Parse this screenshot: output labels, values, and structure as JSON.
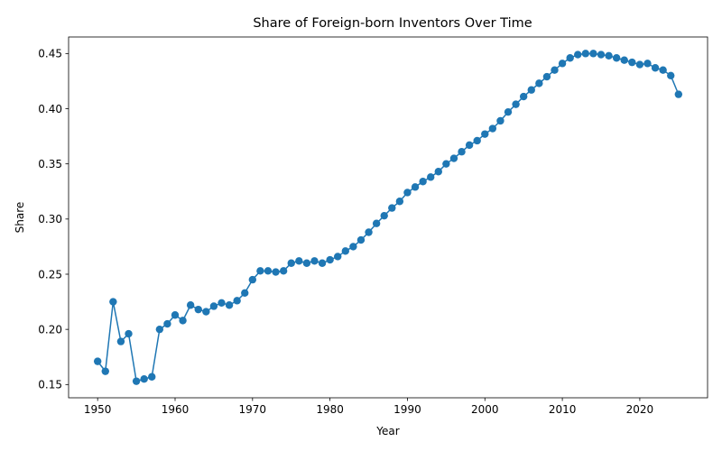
{
  "chart_data": {
    "type": "line",
    "title": "Share of Foreign-born Inventors Over Time",
    "xlabel": "Year",
    "ylabel": "Share",
    "xlim": [
      1946.25,
      2028.75
    ],
    "ylim": [
      0.138,
      0.465
    ],
    "xticks": [
      1950,
      1960,
      1970,
      1980,
      1990,
      2000,
      2010,
      2020
    ],
    "yticks": [
      0.15,
      0.2,
      0.25,
      0.3,
      0.35,
      0.4,
      0.45
    ],
    "xtick_labels": [
      "1950",
      "1960",
      "1970",
      "1980",
      "1990",
      "2000",
      "2010",
      "2020"
    ],
    "ytick_labels": [
      "0.15",
      "0.20",
      "0.25",
      "0.30",
      "0.35",
      "0.40",
      "0.45"
    ],
    "grid": false,
    "marker": "circle",
    "color": "#1f77b4",
    "series": [
      {
        "x": [
          1950,
          1951,
          1952,
          1953,
          1954,
          1955,
          1956,
          1957,
          1958,
          1959,
          1960,
          1961,
          1962,
          1963,
          1964,
          1965,
          1966,
          1967,
          1968,
          1969,
          1970,
          1971,
          1972,
          1973,
          1974,
          1975,
          1976,
          1977,
          1978,
          1979,
          1980,
          1981,
          1982,
          1983,
          1984,
          1985,
          1986,
          1987,
          1988,
          1989,
          1990,
          1991,
          1992,
          1993,
          1994,
          1995,
          1996,
          1997,
          1998,
          1999,
          2000,
          2001,
          2002,
          2003,
          2004,
          2005,
          2006,
          2007,
          2008,
          2009,
          2010,
          2011,
          2012,
          2013,
          2014,
          2015,
          2016,
          2017,
          2018,
          2019,
          2020,
          2021,
          2022,
          2023,
          2024,
          2025
        ],
        "values": [
          0.171,
          0.162,
          0.225,
          0.189,
          0.196,
          0.153,
          0.155,
          0.157,
          0.2,
          0.205,
          0.213,
          0.208,
          0.222,
          0.218,
          0.216,
          0.221,
          0.224,
          0.222,
          0.226,
          0.233,
          0.245,
          0.253,
          0.253,
          0.252,
          0.253,
          0.26,
          0.262,
          0.26,
          0.262,
          0.26,
          0.263,
          0.266,
          0.271,
          0.275,
          0.281,
          0.288,
          0.296,
          0.303,
          0.31,
          0.316,
          0.324,
          0.329,
          0.334,
          0.338,
          0.343,
          0.35,
          0.355,
          0.361,
          0.367,
          0.371,
          0.377,
          0.382,
          0.389,
          0.397,
          0.404,
          0.411,
          0.417,
          0.423,
          0.429,
          0.435,
          0.441,
          0.446,
          0.449,
          0.45,
          0.45,
          0.449,
          0.448,
          0.446,
          0.444,
          0.442,
          0.44,
          0.441,
          0.437,
          0.435,
          0.43,
          0.413
        ]
      }
    ]
  }
}
